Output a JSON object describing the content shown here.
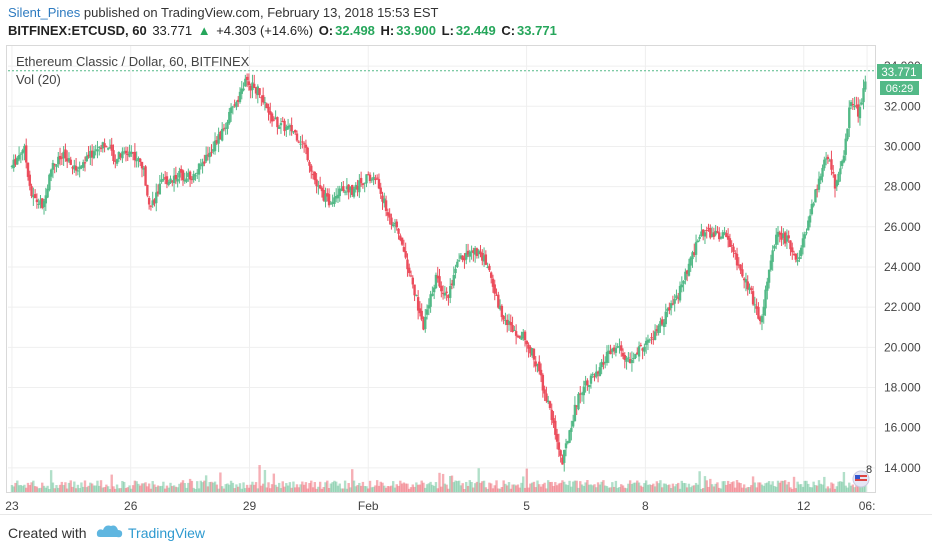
{
  "header": {
    "user": "Silent_Pines",
    "published": "published on TradingView.com, February 13, 2018 15:53 EST",
    "symbol": "BITFINEX:ETCUSD, 60",
    "last": "33.771",
    "change_arrow": "▲",
    "change": "+4.303 (+14.6%)",
    "o_label": "O:",
    "o_value": "32.498",
    "h_label": "H:",
    "h_value": "33.900",
    "l_label": "L:",
    "l_value": "32.449",
    "c_label": "C:",
    "c_value": "33.771"
  },
  "legend": {
    "title": "Ethereum Classic / Dollar, 60, BITFINEX",
    "volume": "Vol (20)"
  },
  "badges": {
    "price": "33.771",
    "countdown": "06:29",
    "volume": "8"
  },
  "footer": {
    "created_with": "Created with",
    "brand": "TradingView"
  },
  "colors": {
    "up": "#53b987",
    "down": "#eb4d5c",
    "grid": "#efefef",
    "accent": "#2e9ad0"
  },
  "chart_data": {
    "type": "candlestick",
    "title": "Ethereum Classic / Dollar, 60, BITFINEX",
    "y_axis": {
      "ticks": [
        "14.000",
        "16.000",
        "18.000",
        "20.000",
        "22.000",
        "24.000",
        "26.000",
        "28.000",
        "30.000",
        "32.000",
        "34.000"
      ],
      "range": [
        12.8,
        35.0
      ]
    },
    "x_axis": {
      "ticks": [
        {
          "label": "23",
          "x": 0.0
        },
        {
          "label": "26",
          "x": 3.0
        },
        {
          "label": "29",
          "x": 6.0
        },
        {
          "label": "Feb",
          "x": 9.0
        },
        {
          "label": "5",
          "x": 13.0
        },
        {
          "label": "8",
          "x": 16.0
        },
        {
          "label": "12",
          "x": 20.0
        },
        {
          "label": "06:",
          "x": 21.6
        }
      ],
      "range": [
        -0.1,
        21.8
      ]
    },
    "price_path": [
      [
        0.0,
        29.0
      ],
      [
        0.3,
        30.0
      ],
      [
        0.5,
        27.5
      ],
      [
        0.8,
        27.0
      ],
      [
        1.0,
        29.0
      ],
      [
        1.3,
        29.5
      ],
      [
        1.6,
        28.8
      ],
      [
        2.0,
        29.6
      ],
      [
        2.3,
        30.2
      ],
      [
        2.6,
        29.4
      ],
      [
        3.0,
        29.8
      ],
      [
        3.3,
        29.0
      ],
      [
        3.5,
        27.0
      ],
      [
        3.8,
        28.2
      ],
      [
        4.2,
        28.6
      ],
      [
        4.6,
        28.5
      ],
      [
        5.0,
        29.8
      ],
      [
        5.3,
        30.6
      ],
      [
        5.6,
        32.0
      ],
      [
        5.9,
        33.2
      ],
      [
        6.2,
        32.8
      ],
      [
        6.5,
        31.5
      ],
      [
        6.8,
        31.0
      ],
      [
        7.1,
        30.8
      ],
      [
        7.4,
        30.0
      ],
      [
        7.7,
        28.0
      ],
      [
        8.0,
        27.2
      ],
      [
        8.3,
        28.0
      ],
      [
        8.6,
        27.8
      ],
      [
        8.9,
        28.4
      ],
      [
        9.2,
        28.4
      ],
      [
        9.5,
        26.6
      ],
      [
        9.8,
        25.5
      ],
      [
        10.0,
        24.0
      ],
      [
        10.2,
        22.5
      ],
      [
        10.4,
        21.0
      ],
      [
        10.7,
        23.5
      ],
      [
        11.0,
        22.5
      ],
      [
        11.3,
        24.4
      ],
      [
        11.7,
        24.8
      ],
      [
        12.0,
        24.2
      ],
      [
        12.3,
        22.0
      ],
      [
        12.6,
        21.0
      ],
      [
        12.9,
        20.6
      ],
      [
        13.2,
        19.5
      ],
      [
        13.5,
        17.5
      ],
      [
        13.7,
        16.0
      ],
      [
        13.9,
        14.2
      ],
      [
        14.1,
        16.0
      ],
      [
        14.3,
        17.5
      ],
      [
        14.5,
        18.3
      ],
      [
        14.8,
        18.6
      ],
      [
        15.0,
        19.5
      ],
      [
        15.3,
        20.0
      ],
      [
        15.6,
        19.2
      ],
      [
        15.9,
        20.0
      ],
      [
        16.2,
        20.5
      ],
      [
        16.5,
        21.5
      ],
      [
        16.8,
        22.5
      ],
      [
        17.1,
        24.0
      ],
      [
        17.4,
        25.8
      ],
      [
        17.7,
        25.6
      ],
      [
        18.0,
        25.6
      ],
      [
        18.2,
        24.8
      ],
      [
        18.5,
        23.5
      ],
      [
        18.7,
        22.5
      ],
      [
        18.9,
        21.2
      ],
      [
        19.1,
        23.5
      ],
      [
        19.3,
        25.6
      ],
      [
        19.6,
        25.3
      ],
      [
        19.8,
        24.2
      ],
      [
        20.0,
        25.3
      ],
      [
        20.2,
        27.0
      ],
      [
        20.4,
        28.5
      ],
      [
        20.6,
        29.6
      ],
      [
        20.8,
        28.0
      ],
      [
        21.0,
        29.5
      ],
      [
        21.2,
        32.5
      ],
      [
        21.4,
        31.5
      ],
      [
        21.5,
        32.7
      ],
      [
        21.6,
        33.77
      ]
    ],
    "last_price": 33.771
  }
}
